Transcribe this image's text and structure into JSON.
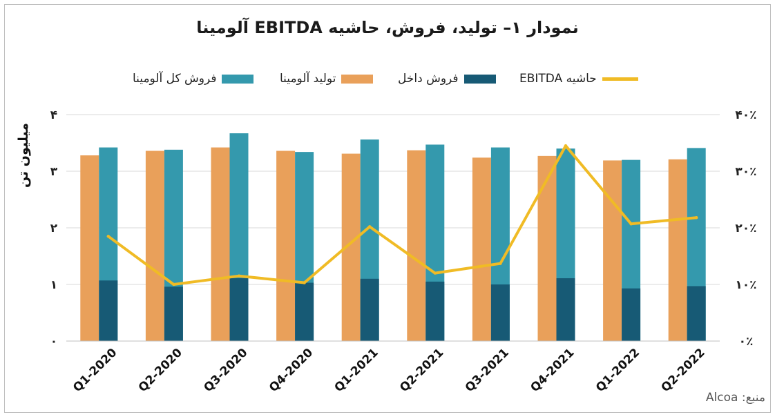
{
  "title": "نمودار ۱– تولید، فروش، حاشیه EBITDA آلومینا",
  "source": "منبع: Alcoa",
  "colors": {
    "total_sales": "#3499ad",
    "production": "#e9a05a",
    "domestic": "#175a75",
    "ebitda": "#f0bb25",
    "grid": "#d9d9d9"
  },
  "chart_data": {
    "type": "bar",
    "title": "نمودار ۱– تولید، فروش، حاشیه EBITDA آلومینا",
    "categories": [
      "Q1-2020",
      "Q2-2020",
      "Q3-2020",
      "Q4-2020",
      "Q1-2021",
      "Q2-2021",
      "Q3-2021",
      "Q4-2021",
      "Q1-2022",
      "Q2-2022"
    ],
    "ylabel": "میلیون تن",
    "ylim": [
      0,
      4
    ],
    "yticks": [
      "۰",
      "۱",
      "۲",
      "۳",
      "۴"
    ],
    "y2lim": [
      0,
      40
    ],
    "y2ticks": [
      "۰٪",
      "۱۰٪",
      "۲۰٪",
      "۳۰٪",
      "۴۰٪"
    ],
    "grid": true,
    "legend_position": "top",
    "series": [
      {
        "name": "تولید آلومینا",
        "kind": "bar",
        "color": "#e9a05a",
        "values": [
          3.28,
          3.36,
          3.42,
          3.36,
          3.31,
          3.37,
          3.24,
          3.27,
          3.19,
          3.21
        ]
      },
      {
        "name": "فروش کل آلومینا",
        "kind": "bar",
        "color": "#3499ad",
        "values": [
          3.42,
          3.38,
          3.67,
          3.34,
          3.56,
          3.47,
          3.42,
          3.4,
          3.2,
          3.41
        ]
      },
      {
        "name": "فروش داخل",
        "kind": "bar-inner",
        "color": "#175a75",
        "values": [
          1.07,
          0.96,
          1.11,
          1.03,
          1.1,
          1.05,
          1.0,
          1.11,
          0.93,
          0.97
        ]
      },
      {
        "name": "حاشیه EBITDA",
        "kind": "line",
        "axis": "right",
        "color": "#f0bb25",
        "values": [
          18.5,
          10.0,
          11.5,
          10.3,
          20.2,
          12.0,
          13.7,
          34.5,
          20.7,
          21.8
        ]
      }
    ]
  }
}
